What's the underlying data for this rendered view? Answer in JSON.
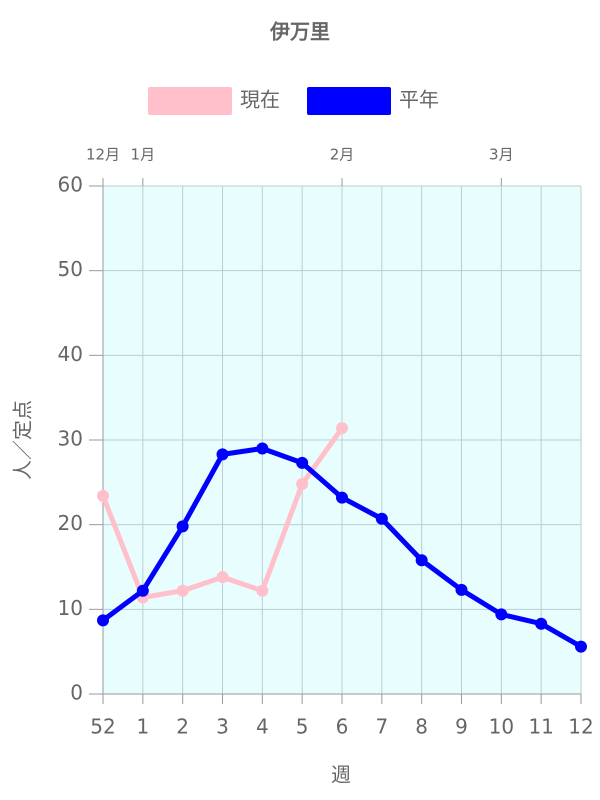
{
  "chart_data": {
    "type": "line",
    "title": "伊万里",
    "x_label": "週",
    "y_label": "人／定点",
    "categories": [
      "52",
      "1",
      "2",
      "3",
      "4",
      "5",
      "6",
      "7",
      "8",
      "9",
      "10",
      "11",
      "12"
    ],
    "top_labels": [
      {
        "at": "52",
        "label": "12月"
      },
      {
        "at": "1",
        "label": "1月"
      },
      {
        "at": "6",
        "label": "2月"
      },
      {
        "at": "10",
        "label": "3月"
      }
    ],
    "series": [
      {
        "name": "現在",
        "color": "#ffc0cb",
        "values": [
          23.4,
          11.4,
          12.2,
          13.8,
          12.2,
          24.8,
          31.4,
          null,
          null,
          null,
          null,
          null,
          null
        ]
      },
      {
        "name": "平年",
        "color": "#0000ff",
        "values": [
          8.7,
          12.2,
          19.8,
          28.3,
          29.0,
          27.3,
          23.2,
          20.7,
          15.8,
          12.3,
          9.4,
          8.3,
          5.6
        ]
      }
    ],
    "ylim": [
      0,
      60
    ],
    "yticks": [
      0,
      10,
      20,
      30,
      40,
      50,
      60
    ],
    "grid": true,
    "plot_background": "#e8fdfd"
  }
}
